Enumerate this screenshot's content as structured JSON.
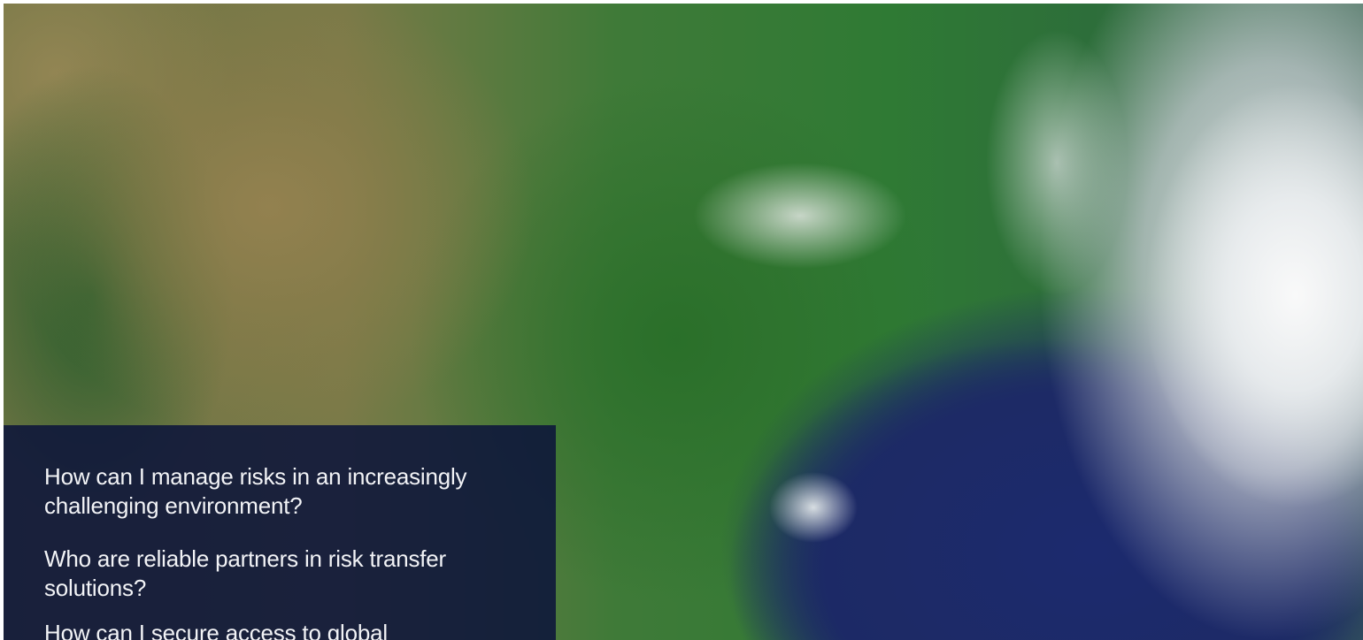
{
  "questions": [
    "How can I manage risks in an increasingly challenging environment?",
    "Who are reliable partners in risk transfer solutions?",
    "How can I secure access to global"
  ]
}
